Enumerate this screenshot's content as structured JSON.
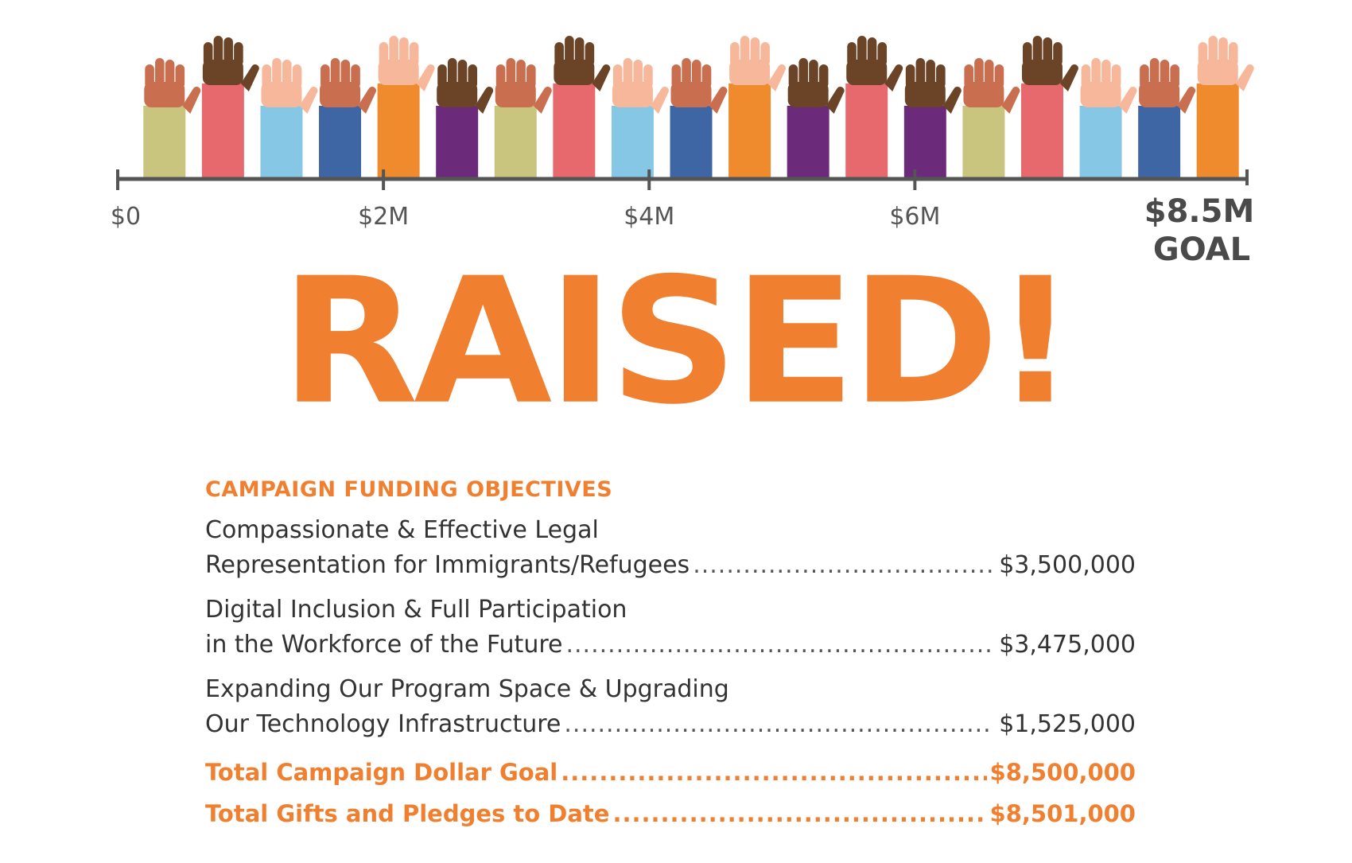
{
  "chart_data": {
    "type": "bar",
    "axis_ticks": [
      "$0",
      "$2M",
      "$4M",
      "$6M"
    ],
    "tick_values": [
      0,
      2,
      4,
      6
    ],
    "goal_amount": "$8.5M",
    "goal_label": "GOAL",
    "xlim": [
      0,
      8.5
    ],
    "raised_value": 8.5,
    "headline": "RAISED!",
    "sleeve_colors": [
      "#c9c57f",
      "#e8696d",
      "#86c7e6",
      "#3e66a5",
      "#ef8a2d",
      "#6b2a7a",
      "#c9c57f",
      "#e8696d",
      "#86c7e6",
      "#3e66a5",
      "#ef8a2d",
      "#6b2a7a",
      "#e8696d",
      "#6b2a7a",
      "#c9c57f",
      "#e8696d",
      "#86c7e6",
      "#3e66a5",
      "#ef8a2d"
    ],
    "skin_colors": [
      "#c96e4f",
      "#6b4427",
      "#f7b79a",
      "#c96e4f",
      "#f7b79a",
      "#6b4427",
      "#c96e4f",
      "#6b4427",
      "#f7b79a",
      "#c96e4f",
      "#f7b79a",
      "#6b4427",
      "#6b4427",
      "#6b4427",
      "#c96e4f",
      "#6b4427",
      "#f7b79a",
      "#c96e4f",
      "#f7b79a"
    ],
    "tall_hands": [
      false,
      true,
      false,
      false,
      true,
      false,
      false,
      true,
      false,
      false,
      true,
      false,
      true,
      false,
      false,
      true,
      false,
      false,
      true
    ]
  },
  "objectives": {
    "heading": "CAMPAIGN FUNDING OBJECTIVES",
    "items": [
      {
        "line1": "Compassionate & Effective Legal",
        "line2": "Representation for Immigrants/Refugees",
        "amount": "$3,500,000"
      },
      {
        "line1": "Digital Inclusion & Full Participation",
        "line2": "in the Workforce of the Future",
        "amount": "$3,475,000"
      },
      {
        "line1": "Expanding Our Program Space & Upgrading",
        "line2": "Our Technology Infrastructure",
        "amount": "$1,525,000"
      }
    ],
    "totals": [
      {
        "label": "Total Campaign Dollar Goal",
        "amount": "$8,500,000"
      },
      {
        "label": "Total Gifts and Pledges to Date",
        "amount": "$8,501,000"
      }
    ]
  },
  "colors": {
    "accent": "#f0802f",
    "axis": "#555555",
    "text": "#333333"
  }
}
